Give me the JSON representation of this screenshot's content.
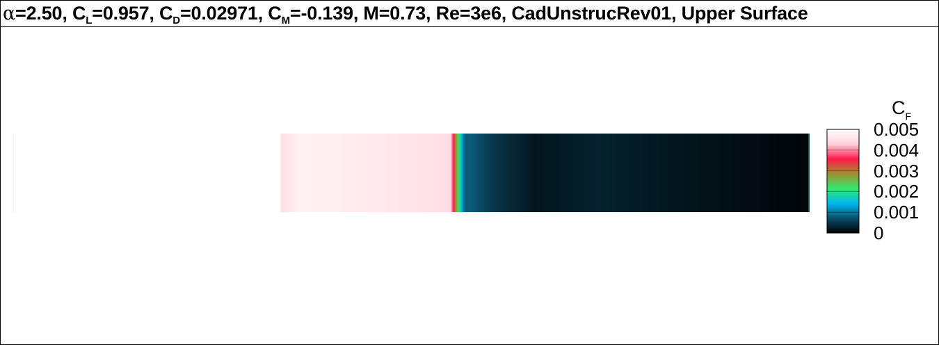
{
  "title": {
    "alpha_symbol": "α",
    "alpha_text": "=2.50, C",
    "cl_sub": "L",
    "cl_text": "=0.957, C",
    "cd_sub": "D",
    "cd_text": "=0.02971, C",
    "cm_sub": "M",
    "cm_text": "=-0.139, M=0.73, Re=3e6, CadUnstrucRev01, Upper Surface"
  },
  "legend": {
    "title_main": "C",
    "title_sub": "F",
    "ticks": [
      "0.005",
      "0.004",
      "0.003",
      "0.002",
      "0.001",
      "0"
    ]
  },
  "colors": {
    "background": "#ffffff",
    "colormap": [
      "#000000",
      "#0b4f6a",
      "#00b8f0",
      "#33e86a",
      "#a09030",
      "#ff1a4a",
      "#ffd0dc",
      "#ffffff"
    ]
  },
  "chart_data": {
    "type": "heatmap",
    "variable": "C_F",
    "surface": "Upper Surface",
    "colorbar_range": [
      0,
      0.005
    ],
    "colorbar_ticks": [
      0,
      0.001,
      0.002,
      0.003,
      0.004,
      0.005
    ],
    "strip_profile": {
      "description": "skin friction along chord",
      "fractions": [
        0.0,
        0.04,
        0.32,
        0.33,
        0.345,
        0.35,
        0.36,
        0.4,
        0.48,
        0.6,
        0.75,
        0.9,
        1.0
      ],
      "values": [
        0.0045,
        0.0048,
        0.0045,
        0.003,
        0.001,
        0.0008,
        0.0008,
        0.0005,
        0.0002,
        0.0003,
        0.0002,
        0.0001,
        5e-05
      ]
    }
  }
}
